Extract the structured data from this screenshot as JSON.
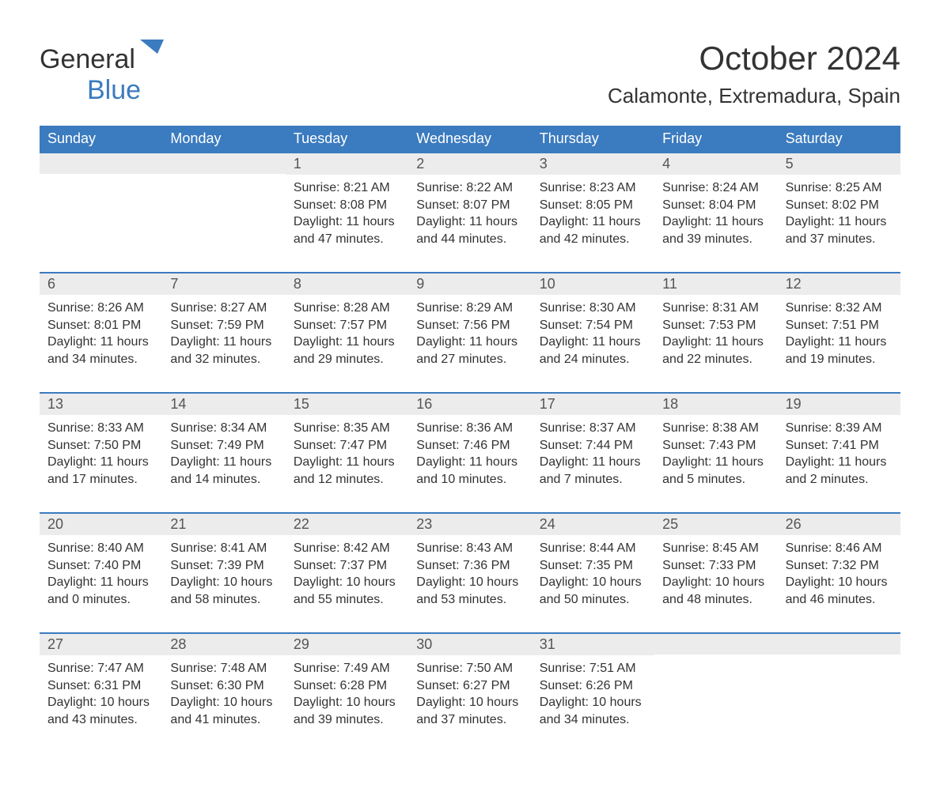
{
  "logo": {
    "general": "General",
    "blue": "Blue",
    "shape_color": "#3b7bbf"
  },
  "title": "October 2024",
  "location": "Calamonte, Extremadura, Spain",
  "colors": {
    "header_bg": "#3b7bbf",
    "header_text": "#ffffff",
    "daynum_bg": "#ececec",
    "week_border": "#3b7bbf",
    "body_text": "#333333",
    "page_bg": "#ffffff"
  },
  "weekdays": [
    "Sunday",
    "Monday",
    "Tuesday",
    "Wednesday",
    "Thursday",
    "Friday",
    "Saturday"
  ],
  "weeks": [
    [
      {
        "day": "",
        "sunrise": "",
        "sunset": "",
        "daylight_a": "",
        "daylight_b": ""
      },
      {
        "day": "",
        "sunrise": "",
        "sunset": "",
        "daylight_a": "",
        "daylight_b": ""
      },
      {
        "day": "1",
        "sunrise": "Sunrise: 8:21 AM",
        "sunset": "Sunset: 8:08 PM",
        "daylight_a": "Daylight: 11 hours",
        "daylight_b": "and 47 minutes."
      },
      {
        "day": "2",
        "sunrise": "Sunrise: 8:22 AM",
        "sunset": "Sunset: 8:07 PM",
        "daylight_a": "Daylight: 11 hours",
        "daylight_b": "and 44 minutes."
      },
      {
        "day": "3",
        "sunrise": "Sunrise: 8:23 AM",
        "sunset": "Sunset: 8:05 PM",
        "daylight_a": "Daylight: 11 hours",
        "daylight_b": "and 42 minutes."
      },
      {
        "day": "4",
        "sunrise": "Sunrise: 8:24 AM",
        "sunset": "Sunset: 8:04 PM",
        "daylight_a": "Daylight: 11 hours",
        "daylight_b": "and 39 minutes."
      },
      {
        "day": "5",
        "sunrise": "Sunrise: 8:25 AM",
        "sunset": "Sunset: 8:02 PM",
        "daylight_a": "Daylight: 11 hours",
        "daylight_b": "and 37 minutes."
      }
    ],
    [
      {
        "day": "6",
        "sunrise": "Sunrise: 8:26 AM",
        "sunset": "Sunset: 8:01 PM",
        "daylight_a": "Daylight: 11 hours",
        "daylight_b": "and 34 minutes."
      },
      {
        "day": "7",
        "sunrise": "Sunrise: 8:27 AM",
        "sunset": "Sunset: 7:59 PM",
        "daylight_a": "Daylight: 11 hours",
        "daylight_b": "and 32 minutes."
      },
      {
        "day": "8",
        "sunrise": "Sunrise: 8:28 AM",
        "sunset": "Sunset: 7:57 PM",
        "daylight_a": "Daylight: 11 hours",
        "daylight_b": "and 29 minutes."
      },
      {
        "day": "9",
        "sunrise": "Sunrise: 8:29 AM",
        "sunset": "Sunset: 7:56 PM",
        "daylight_a": "Daylight: 11 hours",
        "daylight_b": "and 27 minutes."
      },
      {
        "day": "10",
        "sunrise": "Sunrise: 8:30 AM",
        "sunset": "Sunset: 7:54 PM",
        "daylight_a": "Daylight: 11 hours",
        "daylight_b": "and 24 minutes."
      },
      {
        "day": "11",
        "sunrise": "Sunrise: 8:31 AM",
        "sunset": "Sunset: 7:53 PM",
        "daylight_a": "Daylight: 11 hours",
        "daylight_b": "and 22 minutes."
      },
      {
        "day": "12",
        "sunrise": "Sunrise: 8:32 AM",
        "sunset": "Sunset: 7:51 PM",
        "daylight_a": "Daylight: 11 hours",
        "daylight_b": "and 19 minutes."
      }
    ],
    [
      {
        "day": "13",
        "sunrise": "Sunrise: 8:33 AM",
        "sunset": "Sunset: 7:50 PM",
        "daylight_a": "Daylight: 11 hours",
        "daylight_b": "and 17 minutes."
      },
      {
        "day": "14",
        "sunrise": "Sunrise: 8:34 AM",
        "sunset": "Sunset: 7:49 PM",
        "daylight_a": "Daylight: 11 hours",
        "daylight_b": "and 14 minutes."
      },
      {
        "day": "15",
        "sunrise": "Sunrise: 8:35 AM",
        "sunset": "Sunset: 7:47 PM",
        "daylight_a": "Daylight: 11 hours",
        "daylight_b": "and 12 minutes."
      },
      {
        "day": "16",
        "sunrise": "Sunrise: 8:36 AM",
        "sunset": "Sunset: 7:46 PM",
        "daylight_a": "Daylight: 11 hours",
        "daylight_b": "and 10 minutes."
      },
      {
        "day": "17",
        "sunrise": "Sunrise: 8:37 AM",
        "sunset": "Sunset: 7:44 PM",
        "daylight_a": "Daylight: 11 hours",
        "daylight_b": "and 7 minutes."
      },
      {
        "day": "18",
        "sunrise": "Sunrise: 8:38 AM",
        "sunset": "Sunset: 7:43 PM",
        "daylight_a": "Daylight: 11 hours",
        "daylight_b": "and 5 minutes."
      },
      {
        "day": "19",
        "sunrise": "Sunrise: 8:39 AM",
        "sunset": "Sunset: 7:41 PM",
        "daylight_a": "Daylight: 11 hours",
        "daylight_b": "and 2 minutes."
      }
    ],
    [
      {
        "day": "20",
        "sunrise": "Sunrise: 8:40 AM",
        "sunset": "Sunset: 7:40 PM",
        "daylight_a": "Daylight: 11 hours",
        "daylight_b": "and 0 minutes."
      },
      {
        "day": "21",
        "sunrise": "Sunrise: 8:41 AM",
        "sunset": "Sunset: 7:39 PM",
        "daylight_a": "Daylight: 10 hours",
        "daylight_b": "and 58 minutes."
      },
      {
        "day": "22",
        "sunrise": "Sunrise: 8:42 AM",
        "sunset": "Sunset: 7:37 PM",
        "daylight_a": "Daylight: 10 hours",
        "daylight_b": "and 55 minutes."
      },
      {
        "day": "23",
        "sunrise": "Sunrise: 8:43 AM",
        "sunset": "Sunset: 7:36 PM",
        "daylight_a": "Daylight: 10 hours",
        "daylight_b": "and 53 minutes."
      },
      {
        "day": "24",
        "sunrise": "Sunrise: 8:44 AM",
        "sunset": "Sunset: 7:35 PM",
        "daylight_a": "Daylight: 10 hours",
        "daylight_b": "and 50 minutes."
      },
      {
        "day": "25",
        "sunrise": "Sunrise: 8:45 AM",
        "sunset": "Sunset: 7:33 PM",
        "daylight_a": "Daylight: 10 hours",
        "daylight_b": "and 48 minutes."
      },
      {
        "day": "26",
        "sunrise": "Sunrise: 8:46 AM",
        "sunset": "Sunset: 7:32 PM",
        "daylight_a": "Daylight: 10 hours",
        "daylight_b": "and 46 minutes."
      }
    ],
    [
      {
        "day": "27",
        "sunrise": "Sunrise: 7:47 AM",
        "sunset": "Sunset: 6:31 PM",
        "daylight_a": "Daylight: 10 hours",
        "daylight_b": "and 43 minutes."
      },
      {
        "day": "28",
        "sunrise": "Sunrise: 7:48 AM",
        "sunset": "Sunset: 6:30 PM",
        "daylight_a": "Daylight: 10 hours",
        "daylight_b": "and 41 minutes."
      },
      {
        "day": "29",
        "sunrise": "Sunrise: 7:49 AM",
        "sunset": "Sunset: 6:28 PM",
        "daylight_a": "Daylight: 10 hours",
        "daylight_b": "and 39 minutes."
      },
      {
        "day": "30",
        "sunrise": "Sunrise: 7:50 AM",
        "sunset": "Sunset: 6:27 PM",
        "daylight_a": "Daylight: 10 hours",
        "daylight_b": "and 37 minutes."
      },
      {
        "day": "31",
        "sunrise": "Sunrise: 7:51 AM",
        "sunset": "Sunset: 6:26 PM",
        "daylight_a": "Daylight: 10 hours",
        "daylight_b": "and 34 minutes."
      },
      {
        "day": "",
        "sunrise": "",
        "sunset": "",
        "daylight_a": "",
        "daylight_b": ""
      },
      {
        "day": "",
        "sunrise": "",
        "sunset": "",
        "daylight_a": "",
        "daylight_b": ""
      }
    ]
  ]
}
